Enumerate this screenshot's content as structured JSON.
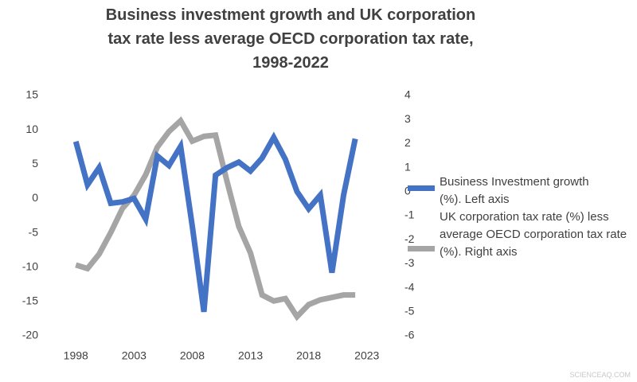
{
  "chart_data": {
    "type": "line",
    "title": "Business investment growth and UK corporation tax rate less average OECD corporation tax rate, 1998-2022",
    "x": [
      1998,
      1999,
      2000,
      2001,
      2002,
      2003,
      2004,
      2005,
      2006,
      2007,
      2008,
      2009,
      2010,
      2011,
      2012,
      2013,
      2014,
      2015,
      2016,
      2017,
      2018,
      2019,
      2020,
      2021,
      2022
    ],
    "series": [
      {
        "name": "Business Investment growth (%). Left axis",
        "color": "#4472c4",
        "values": [
          8.3,
          2.0,
          4.5,
          -0.7,
          -0.5,
          0.0,
          -3.0,
          6.2,
          4.8,
          7.6,
          -4.0,
          -16.5,
          3.4,
          4.5,
          5.3,
          4.0,
          5.9,
          8.9,
          5.7,
          1.0,
          -1.5,
          0.5,
          -10.8,
          0.5,
          8.7
        ]
      },
      {
        "name": "UK corporation tax rate (%) less average OECD corporation tax rate (%). Right axis",
        "color": "#a5a5a5",
        "axis": "y2",
        "values": [
          -3.05,
          -3.2,
          -2.6,
          -1.7,
          -0.7,
          -0.15,
          0.7,
          1.85,
          2.5,
          2.95,
          2.1,
          2.3,
          2.35,
          0.4,
          -1.45,
          -2.55,
          -4.3,
          -4.55,
          -4.45,
          -5.2,
          -4.7,
          -4.5,
          -4.4,
          -4.3,
          -4.3
        ]
      }
    ],
    "xlim": [
      1996,
      2025
    ],
    "xticks": [
      1998,
      2003,
      2008,
      2013,
      2018,
      2023
    ],
    "ylim": [
      -20,
      15
    ],
    "yticks": [
      -20,
      -15,
      -10,
      -5,
      0,
      5,
      10,
      15
    ],
    "y2lim": [
      -6,
      4
    ],
    "y2ticks": [
      -6,
      -5,
      -4,
      -3,
      -2,
      -1,
      0,
      1,
      2,
      3,
      4
    ],
    "legend": "right",
    "grid": false,
    "watermark": "SCIENCEAQ.COM"
  }
}
